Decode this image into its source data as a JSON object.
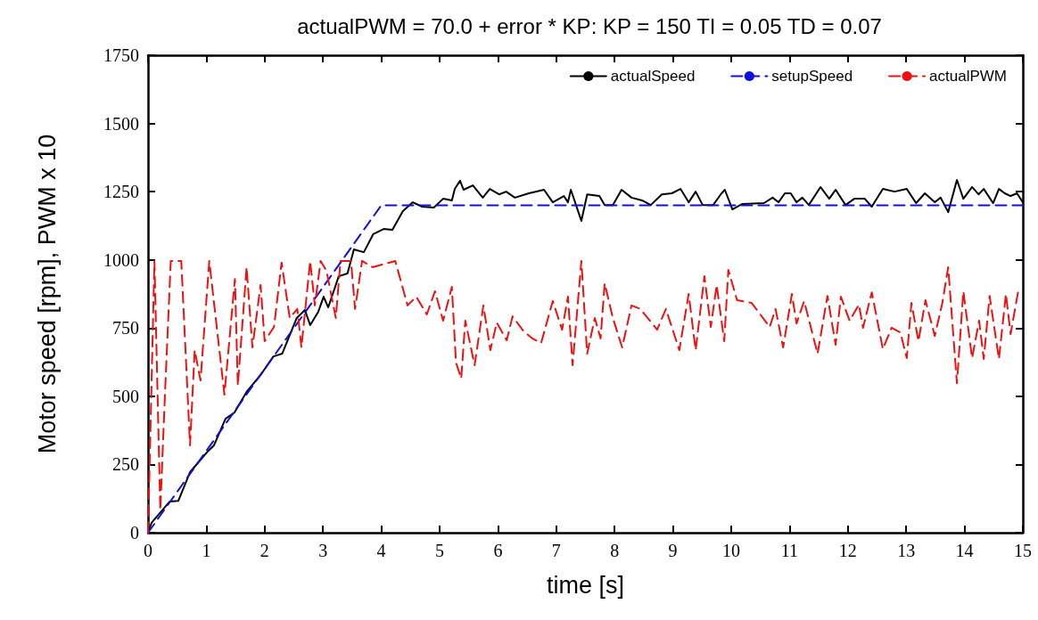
{
  "chart_data": {
    "type": "line",
    "title": "actualPWM = 70.0 + error * KP: KP = 150 TI = 0.05 TD = 0.07",
    "xlabel": "time [s]",
    "ylabel": "Motor speed [rpm], PWM x 10",
    "xlim": [
      0,
      15
    ],
    "xticks": [
      0,
      1,
      2,
      3,
      4,
      5,
      6,
      7,
      8,
      9,
      10,
      11,
      12,
      13,
      14,
      15
    ],
    "ylim": [
      0,
      1750
    ],
    "yticks": [
      0,
      250,
      500,
      750,
      1000,
      1250,
      1500,
      1750
    ],
    "grid": false,
    "legend": "top right",
    "marker": "none",
    "series": [
      {
        "name": "actualSpeed",
        "color": "#000000",
        "line_style": "solid",
        "x": [
          0,
          0.06,
          0.37,
          0.52,
          0.72,
          1.02,
          1.13,
          1.33,
          1.48,
          1.69,
          1.94,
          2.15,
          2.3,
          2.55,
          2.69,
          2.78,
          2.92,
          3.01,
          3.09,
          3.27,
          3.42,
          3.53,
          3.7,
          3.86,
          4.04,
          4.19,
          4.37,
          4.54,
          4.7,
          4.9,
          5.06,
          5.21,
          5.26,
          5.35,
          5.41,
          5.57,
          5.74,
          5.86,
          6.02,
          6.14,
          6.29,
          6.53,
          6.79,
          6.94,
          7.13,
          7.2,
          7.25,
          7.43,
          7.53,
          7.74,
          7.83,
          7.97,
          8.12,
          8.29,
          8.47,
          8.62,
          8.81,
          8.98,
          9.13,
          9.27,
          9.39,
          9.51,
          9.69,
          9.82,
          9.89,
          10.02,
          10.19,
          10.56,
          10.71,
          10.81,
          10.92,
          11.02,
          11.12,
          11.22,
          11.33,
          11.53,
          11.68,
          11.79,
          11.96,
          12.11,
          12.29,
          12.41,
          12.6,
          12.8,
          13.01,
          13.17,
          13.32,
          13.49,
          13.59,
          13.72,
          13.87,
          13.98,
          14.13,
          14.24,
          14.33,
          14.49,
          14.59,
          14.69,
          14.79,
          14.9,
          15
        ],
        "values": [
          0,
          36,
          114,
          117,
          222,
          297,
          320,
          418,
          440,
          516,
          581,
          646,
          656,
          787,
          816,
          761,
          810,
          865,
          826,
          940,
          950,
          1038,
          1028,
          1094,
          1113,
          1110,
          1179,
          1211,
          1195,
          1192,
          1224,
          1218,
          1260,
          1290,
          1257,
          1273,
          1228,
          1260,
          1240,
          1250,
          1228,
          1244,
          1257,
          1211,
          1234,
          1211,
          1257,
          1143,
          1240,
          1234,
          1201,
          1201,
          1257,
          1228,
          1218,
          1201,
          1240,
          1244,
          1260,
          1211,
          1250,
          1201,
          1201,
          1240,
          1257,
          1185,
          1205,
          1208,
          1228,
          1211,
          1244,
          1244,
          1211,
          1228,
          1201,
          1267,
          1224,
          1257,
          1201,
          1224,
          1224,
          1195,
          1260,
          1250,
          1260,
          1208,
          1244,
          1211,
          1228,
          1175,
          1293,
          1224,
          1267,
          1240,
          1260,
          1208,
          1260,
          1244,
          1234,
          1244,
          1211
        ]
      },
      {
        "name": "setupSpeed",
        "color": "#1010dd",
        "line_style": "dashed",
        "x": [
          0,
          4,
          15
        ],
        "values": [
          0,
          1200,
          1200
        ]
      },
      {
        "name": "actualPWM",
        "color": "#ee1111",
        "line_style": "dashed",
        "x": [
          0,
          0.11,
          0.21,
          0.29,
          0.39,
          0.57,
          0.72,
          0.8,
          0.9,
          1.05,
          1.31,
          1.49,
          1.54,
          1.69,
          1.79,
          1.93,
          2.0,
          2.16,
          2.29,
          2.43,
          2.56,
          2.63,
          2.78,
          2.86,
          2.96,
          3.06,
          3.22,
          3.3,
          3.48,
          3.55,
          3.67,
          3.85,
          4.24,
          4.45,
          4.6,
          4.78,
          4.92,
          5.06,
          5.21,
          5.28,
          5.37,
          5.44,
          5.6,
          5.75,
          5.87,
          5.98,
          6.15,
          6.25,
          6.44,
          6.59,
          6.74,
          6.94,
          7.1,
          7.2,
          7.28,
          7.43,
          7.53,
          7.66,
          7.76,
          7.83,
          7.97,
          8.13,
          8.29,
          8.44,
          8.73,
          8.88,
          9.11,
          9.27,
          9.39,
          9.54,
          9.65,
          9.75,
          9.88,
          9.95,
          10.1,
          10.35,
          10.66,
          10.76,
          10.89,
          11.04,
          11.12,
          11.25,
          11.48,
          11.65,
          11.79,
          11.88,
          12.03,
          12.19,
          12.26,
          12.41,
          12.6,
          12.75,
          12.9,
          13.01,
          13.09,
          13.21,
          13.33,
          13.49,
          13.62,
          13.72,
          13.87,
          13.98,
          14.13,
          14.25,
          14.33,
          14.43,
          14.59,
          14.71,
          14.79,
          14.92
        ],
        "values": [
          0,
          996,
          82,
          506,
          996,
          996,
          320,
          669,
          558,
          996,
          506,
          930,
          539,
          973,
          679,
          908,
          702,
          754,
          990,
          787,
          820,
          679,
          996,
          833,
          996,
          960,
          787,
          996,
          996,
          820,
          996,
          973,
          996,
          833,
          865,
          800,
          885,
          777,
          901,
          624,
          565,
          777,
          614,
          833,
          669,
          770,
          705,
          793,
          738,
          712,
          695,
          849,
          744,
          865,
          614,
          996,
          656,
          787,
          712,
          914,
          787,
          679,
          833,
          820,
          744,
          820,
          669,
          875,
          669,
          940,
          754,
          908,
          702,
          963,
          852,
          842,
          754,
          820,
          679,
          875,
          767,
          849,
          656,
          868,
          689,
          865,
          777,
          836,
          751,
          881,
          673,
          751,
          734,
          640,
          842,
          702,
          852,
          721,
          842,
          973,
          548,
          885,
          640,
          777,
          637,
          868,
          637,
          875,
          728,
          885
        ]
      }
    ]
  }
}
